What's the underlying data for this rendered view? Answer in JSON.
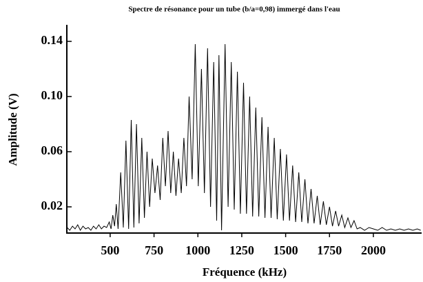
{
  "chart_data": {
    "type": "line",
    "title": "Spectre de résonance pour un tube (b/a=0,98) immergé dans l'eau",
    "xlabel": "Fréquence (kHz)",
    "ylabel": "Amplitude (V)",
    "xlim": [
      253,
      2275
    ],
    "ylim": [
      0.001,
      0.151
    ],
    "xticks": [
      500,
      750,
      1000,
      1250,
      1500,
      1750,
      2000
    ],
    "yticks": [
      0.02,
      0.06,
      {
        "value": 0.1,
        "label": "0.10"
      },
      0.14
    ],
    "series": [
      {
        "color": "#000000",
        "x": [
          255,
          270,
          285,
          300,
          315,
          330,
          345,
          360,
          375,
          390,
          405,
          420,
          435,
          450,
          465,
          480,
          495,
          505,
          515,
          525,
          535,
          545,
          560,
          575,
          590,
          605,
          620,
          635,
          650,
          665,
          680,
          695,
          710,
          725,
          740,
          755,
          770,
          785,
          800,
          815,
          830,
          845,
          860,
          875,
          890,
          905,
          920,
          935,
          950,
          967,
          985,
          1002,
          1020,
          1037,
          1055,
          1072,
          1090,
          1107,
          1120,
          1135,
          1155,
          1172,
          1190,
          1207,
          1225,
          1242,
          1260,
          1277,
          1295,
          1312,
          1330,
          1347,
          1365,
          1382,
          1400,
          1417,
          1435,
          1452,
          1470,
          1487,
          1505,
          1522,
          1540,
          1557,
          1575,
          1592,
          1610,
          1627,
          1645,
          1662,
          1680,
          1697,
          1715,
          1732,
          1750,
          1767,
          1785,
          1802,
          1820,
          1837,
          1855,
          1872,
          1890,
          1907,
          1925,
          1950,
          1975,
          2000,
          2025,
          2050,
          2075,
          2100,
          2125,
          2150,
          2175,
          2200,
          2225,
          2250,
          2270
        ],
        "values": [
          0.005,
          0.003,
          0.006,
          0.004,
          0.007,
          0.003,
          0.006,
          0.004,
          0.005,
          0.003,
          0.006,
          0.004,
          0.007,
          0.004,
          0.006,
          0.005,
          0.009,
          0.004,
          0.014,
          0.006,
          0.022,
          0.004,
          0.045,
          0.005,
          0.068,
          0.004,
          0.083,
          0.005,
          0.08,
          0.008,
          0.07,
          0.012,
          0.06,
          0.02,
          0.055,
          0.03,
          0.05,
          0.025,
          0.07,
          0.035,
          0.075,
          0.03,
          0.06,
          0.028,
          0.055,
          0.03,
          0.07,
          0.035,
          0.1,
          0.04,
          0.138,
          0.035,
          0.12,
          0.03,
          0.135,
          0.02,
          0.125,
          0.01,
          0.13,
          0.003,
          0.138,
          0.02,
          0.125,
          0.018,
          0.118,
          0.015,
          0.11,
          0.015,
          0.1,
          0.013,
          0.092,
          0.013,
          0.085,
          0.012,
          0.078,
          0.012,
          0.07,
          0.011,
          0.062,
          0.01,
          0.058,
          0.01,
          0.05,
          0.009,
          0.045,
          0.009,
          0.04,
          0.008,
          0.033,
          0.008,
          0.028,
          0.007,
          0.024,
          0.007,
          0.02,
          0.006,
          0.017,
          0.006,
          0.014,
          0.005,
          0.012,
          0.005,
          0.01,
          0.004,
          0.005,
          0.003,
          0.005,
          0.004,
          0.003,
          0.005,
          0.003,
          0.004,
          0.003,
          0.004,
          0.003,
          0.004,
          0.003,
          0.004,
          0.003
        ]
      }
    ]
  }
}
